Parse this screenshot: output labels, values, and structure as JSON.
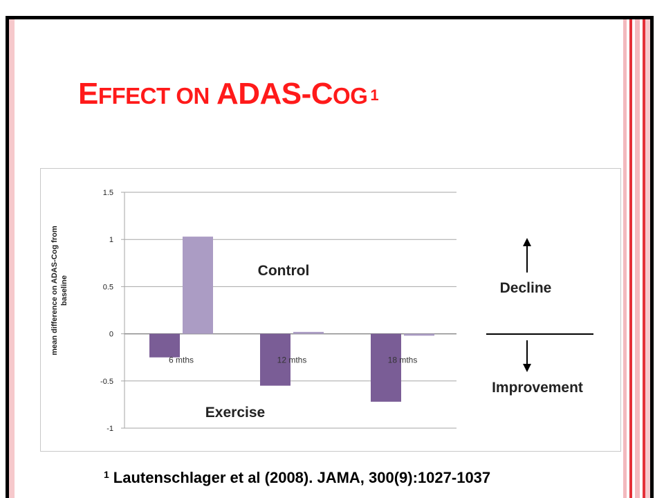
{
  "slide": {
    "title_first": "E",
    "title_small": "FFECT ON",
    "title_main": "ADAS-C",
    "title_small2": "OG",
    "title_sup": "1",
    "reference_sup": "1",
    "reference": "Lautenschlager et al (2008). JAMA, 300(9):1027-1037"
  },
  "chart_data": {
    "type": "bar",
    "categories": [
      "6 mths",
      "12 mths",
      "18 mths"
    ],
    "series": [
      {
        "name": "Exercise",
        "values": [
          -0.25,
          -0.55,
          -0.72
        ],
        "color": "#7a5d96"
      },
      {
        "name": "Control",
        "values": [
          1.03,
          0.02,
          -0.02
        ],
        "color": "#ab9cc4"
      }
    ],
    "ylabel": "mean difference on ADAS-Cog from baseline",
    "yticks": [
      "1.5",
      "1",
      "0.5",
      "0",
      "-0.5",
      "-1"
    ],
    "ylim": [
      -1,
      1.5
    ],
    "grid": true,
    "annotations": {
      "control": "Control",
      "exercise": "Exercise",
      "decline": "Decline",
      "improvement": "Improvement"
    }
  },
  "colors": {
    "title": "#ff1a1a",
    "grid": "#a6a6a6"
  }
}
